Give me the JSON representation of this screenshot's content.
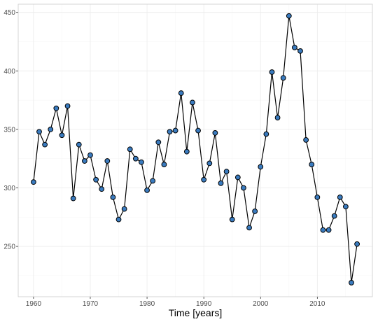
{
  "chart_data": {
    "type": "line",
    "title": "",
    "xlabel": "Time [years]",
    "ylabel": "",
    "xlim": [
      1957.3,
      2019.7
    ],
    "ylim": [
      207,
      457
    ],
    "x_ticks": [
      1960,
      1970,
      1980,
      1990,
      2000,
      2010
    ],
    "y_ticks": [
      250,
      300,
      350,
      400,
      450
    ],
    "grid": true,
    "point_fill_color": "#3A7BBF",
    "line_color": "#000000",
    "x": [
      1960,
      1961,
      1962,
      1963,
      1964,
      1965,
      1966,
      1967,
      1968,
      1969,
      1970,
      1971,
      1972,
      1973,
      1974,
      1975,
      1976,
      1977,
      1978,
      1979,
      1980,
      1981,
      1982,
      1983,
      1984,
      1985,
      1986,
      1987,
      1988,
      1989,
      1990,
      1991,
      1992,
      1993,
      1994,
      1995,
      1996,
      1997,
      1998,
      1999,
      2000,
      2001,
      2002,
      2003,
      2004,
      2005,
      2006,
      2007,
      2008,
      2009,
      2010,
      2011,
      2012,
      2013,
      2014,
      2015,
      2016,
      2017
    ],
    "series": [
      {
        "values": [
          305,
          348,
          337,
          350,
          368,
          345,
          370,
          291,
          337,
          323,
          328,
          307,
          299,
          323,
          292,
          273,
          282,
          333,
          325,
          322,
          298,
          306,
          339,
          320,
          348,
          349,
          381,
          331,
          373,
          349,
          307,
          321,
          347,
          304,
          314,
          273,
          309,
          300,
          266,
          280,
          318,
          346,
          399,
          360,
          394,
          447,
          420,
          417,
          341,
          320,
          292,
          264,
          264,
          276,
          292,
          284,
          219,
          252
        ]
      }
    ]
  }
}
